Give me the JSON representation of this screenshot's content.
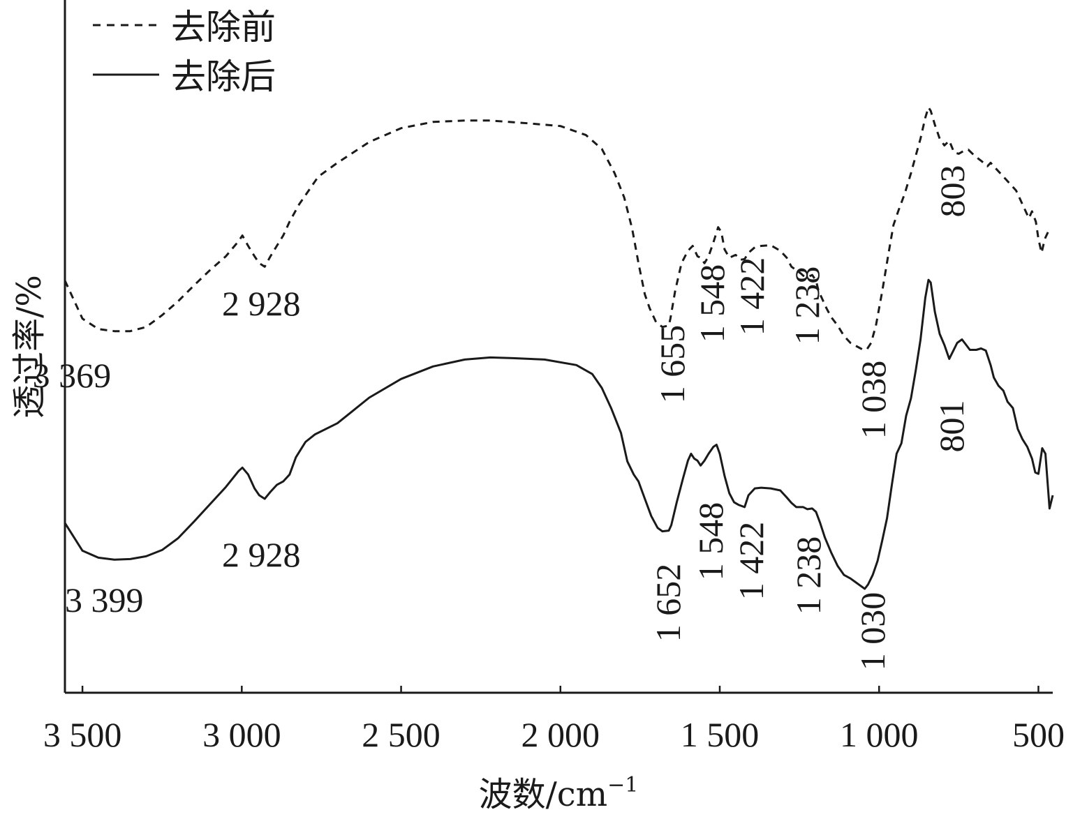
{
  "chart_data": {
    "type": "line",
    "title": "",
    "xlabel_main": "波数/cm",
    "xlabel_sup": "−1",
    "ylabel": "透过率/%",
    "xlim": [
      3555,
      455
    ],
    "ylim": [
      0,
      100
    ],
    "grid": false,
    "legend_position": "top-left",
    "xticks": [
      {
        "value": 3500,
        "label": "3 500"
      },
      {
        "value": 3000,
        "label": "3 000"
      },
      {
        "value": 2500,
        "label": "2 500"
      },
      {
        "value": 2000,
        "label": "2 000"
      },
      {
        "value": 1500,
        "label": "1 500"
      },
      {
        "value": 1000,
        "label": "1 000"
      },
      {
        "value": 500,
        "label": "500"
      }
    ],
    "series": [
      {
        "name": "去除前",
        "style": "dashed",
        "color": "#1a1a1a",
        "points": [
          [
            3555,
            59.5
          ],
          [
            3500,
            54
          ],
          [
            3450,
            52.5
          ],
          [
            3400,
            52.2
          ],
          [
            3350,
            52.2
          ],
          [
            3300,
            52.8
          ],
          [
            3250,
            54.5
          ],
          [
            3200,
            56.5
          ],
          [
            3150,
            58.8
          ],
          [
            3100,
            61
          ],
          [
            3050,
            63
          ],
          [
            3010,
            65.2
          ],
          [
            2998,
            66
          ],
          [
            2980,
            64.5
          ],
          [
            2960,
            63
          ],
          [
            2945,
            62
          ],
          [
            2928,
            61.5
          ],
          [
            2910,
            63
          ],
          [
            2890,
            64.5
          ],
          [
            2870,
            66
          ],
          [
            2850,
            68
          ],
          [
            2820,
            70.5
          ],
          [
            2790,
            72.5
          ],
          [
            2760,
            74.5
          ],
          [
            2700,
            76.5
          ],
          [
            2600,
            79.5
          ],
          [
            2500,
            81.5
          ],
          [
            2400,
            82.4
          ],
          [
            2300,
            82.6
          ],
          [
            2220,
            82.6
          ],
          [
            2100,
            82.2
          ],
          [
            2000,
            81.8
          ],
          [
            1920,
            80.5
          ],
          [
            1870,
            78.5
          ],
          [
            1830,
            75
          ],
          [
            1800,
            71.5
          ],
          [
            1775,
            67
          ],
          [
            1755,
            62
          ],
          [
            1735,
            57.5
          ],
          [
            1720,
            55.5
          ],
          [
            1700,
            53.5
          ],
          [
            1680,
            52.8
          ],
          [
            1660,
            53
          ],
          [
            1655,
            54
          ],
          [
            1640,
            58
          ],
          [
            1620,
            62
          ],
          [
            1600,
            63.8
          ],
          [
            1585,
            64.5
          ],
          [
            1570,
            63
          ],
          [
            1560,
            62.8
          ],
          [
            1548,
            62
          ],
          [
            1535,
            63
          ],
          [
            1520,
            65
          ],
          [
            1505,
            67.2
          ],
          [
            1495,
            66.5
          ],
          [
            1485,
            64
          ],
          [
            1470,
            62.8
          ],
          [
            1450,
            63.2
          ],
          [
            1435,
            62.5
          ],
          [
            1422,
            62.6
          ],
          [
            1410,
            63.5
          ],
          [
            1390,
            64.3
          ],
          [
            1370,
            64.5
          ],
          [
            1340,
            64.6
          ],
          [
            1310,
            63.8
          ],
          [
            1290,
            62.8
          ],
          [
            1275,
            61.5
          ],
          [
            1260,
            61
          ],
          [
            1245,
            60.5
          ],
          [
            1238,
            60.2
          ],
          [
            1225,
            60
          ],
          [
            1210,
            60.3
          ],
          [
            1198,
            59.5
          ],
          [
            1190,
            58
          ],
          [
            1180,
            57
          ],
          [
            1165,
            55.5
          ],
          [
            1150,
            54.2
          ],
          [
            1130,
            53
          ],
          [
            1110,
            51.5
          ],
          [
            1090,
            50.5
          ],
          [
            1070,
            50
          ],
          [
            1050,
            49.5
          ],
          [
            1038,
            49.6
          ],
          [
            1025,
            50.5
          ],
          [
            1010,
            53
          ],
          [
            990,
            58
          ],
          [
            970,
            63.5
          ],
          [
            955,
            67.5
          ],
          [
            940,
            69.5
          ],
          [
            920,
            72
          ],
          [
            900,
            75
          ],
          [
            885,
            77.5
          ],
          [
            870,
            80
          ],
          [
            855,
            83
          ],
          [
            845,
            84.5
          ],
          [
            838,
            84
          ],
          [
            825,
            82
          ],
          [
            810,
            80
          ],
          [
            795,
            79
          ],
          [
            780,
            79.7
          ],
          [
            770,
            78.6
          ],
          [
            765,
            78
          ],
          [
            750,
            77.8
          ],
          [
            735,
            78.2
          ],
          [
            720,
            78.4
          ],
          [
            700,
            77.5
          ],
          [
            680,
            76.8
          ],
          [
            660,
            76
          ],
          [
            650,
            76.5
          ],
          [
            630,
            75.5
          ],
          [
            610,
            74.5
          ],
          [
            590,
            73.5
          ],
          [
            570,
            72.5
          ],
          [
            550,
            70.5
          ],
          [
            530,
            68.5
          ],
          [
            520,
            69.5
          ],
          [
            508,
            68
          ],
          [
            500,
            65.5
          ],
          [
            490,
            63.5
          ],
          [
            480,
            65.5
          ],
          [
            470,
            66.5
          ]
        ]
      },
      {
        "name": "去除后",
        "style": "solid",
        "color": "#1a1a1a",
        "points": [
          [
            3555,
            24.5
          ],
          [
            3500,
            20.5
          ],
          [
            3450,
            19.5
          ],
          [
            3400,
            19.2
          ],
          [
            3350,
            19.3
          ],
          [
            3300,
            19.7
          ],
          [
            3250,
            20.6
          ],
          [
            3200,
            22.3
          ],
          [
            3150,
            24.7
          ],
          [
            3100,
            27.2
          ],
          [
            3050,
            29.7
          ],
          [
            3010,
            32
          ],
          [
            2998,
            32.5
          ],
          [
            2980,
            31.5
          ],
          [
            2960,
            29.5
          ],
          [
            2945,
            28.5
          ],
          [
            2928,
            28
          ],
          [
            2910,
            29
          ],
          [
            2890,
            30
          ],
          [
            2870,
            30.5
          ],
          [
            2850,
            31.5
          ],
          [
            2830,
            34
          ],
          [
            2800,
            36.2
          ],
          [
            2770,
            37.3
          ],
          [
            2700,
            38.9
          ],
          [
            2600,
            42.6
          ],
          [
            2500,
            45.3
          ],
          [
            2400,
            47.1
          ],
          [
            2300,
            48.1
          ],
          [
            2220,
            48.4
          ],
          [
            2150,
            48.3
          ],
          [
            2050,
            48.1
          ],
          [
            1950,
            47.3
          ],
          [
            1900,
            46
          ],
          [
            1870,
            44
          ],
          [
            1840,
            41
          ],
          [
            1810,
            37.5
          ],
          [
            1790,
            33.4
          ],
          [
            1770,
            31.5
          ],
          [
            1755,
            30.5
          ],
          [
            1735,
            28
          ],
          [
            1715,
            25.5
          ],
          [
            1695,
            23.8
          ],
          [
            1680,
            23.3
          ],
          [
            1660,
            23.4
          ],
          [
            1652,
            24.2
          ],
          [
            1635,
            27.5
          ],
          [
            1615,
            31
          ],
          [
            1600,
            33.5
          ],
          [
            1590,
            34.5
          ],
          [
            1580,
            33.8
          ],
          [
            1570,
            33.5
          ],
          [
            1560,
            32.8
          ],
          [
            1548,
            33.5
          ],
          [
            1535,
            34.5
          ],
          [
            1520,
            35.5
          ],
          [
            1510,
            35.8
          ],
          [
            1500,
            34.5
          ],
          [
            1485,
            31.3
          ],
          [
            1470,
            28.8
          ],
          [
            1455,
            27.5
          ],
          [
            1440,
            27.1
          ],
          [
            1422,
            26.8
          ],
          [
            1410,
            28.5
          ],
          [
            1390,
            29.5
          ],
          [
            1370,
            29.6
          ],
          [
            1340,
            29.5
          ],
          [
            1310,
            29.2
          ],
          [
            1290,
            28.2
          ],
          [
            1275,
            27.4
          ],
          [
            1260,
            26.8
          ],
          [
            1245,
            26.8
          ],
          [
            1238,
            26.8
          ],
          [
            1225,
            26.5
          ],
          [
            1210,
            26.6
          ],
          [
            1198,
            26.1
          ],
          [
            1185,
            24.5
          ],
          [
            1170,
            22.4
          ],
          [
            1150,
            20.2
          ],
          [
            1130,
            18.3
          ],
          [
            1110,
            17
          ],
          [
            1090,
            16.5
          ],
          [
            1075,
            16
          ],
          [
            1060,
            15.5
          ],
          [
            1045,
            15
          ],
          [
            1035,
            15.6
          ],
          [
            1020,
            17
          ],
          [
            1005,
            19
          ],
          [
            990,
            22
          ],
          [
            975,
            25.2
          ],
          [
            960,
            30
          ],
          [
            945,
            34.5
          ],
          [
            930,
            36
          ],
          [
            915,
            40
          ],
          [
            900,
            42.5
          ],
          [
            885,
            46.5
          ],
          [
            870,
            51
          ],
          [
            855,
            57
          ],
          [
            845,
            59.6
          ],
          [
            838,
            59.2
          ],
          [
            825,
            55
          ],
          [
            810,
            51.8
          ],
          [
            795,
            50.2
          ],
          [
            780,
            48.2
          ],
          [
            770,
            49.1
          ],
          [
            755,
            50.5
          ],
          [
            740,
            51
          ],
          [
            730,
            50.4
          ],
          [
            715,
            49.5
          ],
          [
            695,
            49.5
          ],
          [
            680,
            49.7
          ],
          [
            665,
            49.4
          ],
          [
            650,
            47.3
          ],
          [
            640,
            45.5
          ],
          [
            625,
            44.3
          ],
          [
            610,
            43.6
          ],
          [
            597,
            42
          ],
          [
            580,
            41.1
          ],
          [
            565,
            38.1
          ],
          [
            550,
            36.6
          ],
          [
            535,
            35.5
          ],
          [
            520,
            33.8
          ],
          [
            510,
            31.8
          ],
          [
            500,
            31.6
          ],
          [
            488,
            35.3
          ],
          [
            478,
            34.5
          ],
          [
            465,
            26.6
          ],
          [
            455,
            28.5
          ]
        ]
      }
    ],
    "annotations": {
      "before": [
        {
          "label": "3 369",
          "wavenumber": 3369,
          "orientation": "horizontal"
        },
        {
          "label": "2 928",
          "wavenumber": 2928,
          "orientation": "horizontal"
        },
        {
          "label": "1 655",
          "wavenumber": 1655,
          "orientation": "vertical"
        },
        {
          "label": "1 548",
          "wavenumber": 1548,
          "orientation": "vertical"
        },
        {
          "label": "1 422",
          "wavenumber": 1422,
          "orientation": "vertical"
        },
        {
          "label": "1 238",
          "wavenumber": 1238,
          "orientation": "vertical"
        },
        {
          "label": "1 038",
          "wavenumber": 1038,
          "orientation": "vertical"
        },
        {
          "label": "803",
          "wavenumber": 803,
          "orientation": "vertical"
        }
      ],
      "after": [
        {
          "label": "3 399",
          "wavenumber": 3399,
          "orientation": "horizontal"
        },
        {
          "label": "2 928",
          "wavenumber": 2928,
          "orientation": "horizontal"
        },
        {
          "label": "1 652",
          "wavenumber": 1652,
          "orientation": "vertical"
        },
        {
          "label": "1 548",
          "wavenumber": 1548,
          "orientation": "vertical"
        },
        {
          "label": "1 422",
          "wavenumber": 1422,
          "orientation": "vertical"
        },
        {
          "label": "1 238",
          "wavenumber": 1238,
          "orientation": "vertical"
        },
        {
          "label": "1 030",
          "wavenumber": 1030,
          "orientation": "vertical"
        },
        {
          "label": "801",
          "wavenumber": 801,
          "orientation": "vertical"
        }
      ]
    }
  }
}
